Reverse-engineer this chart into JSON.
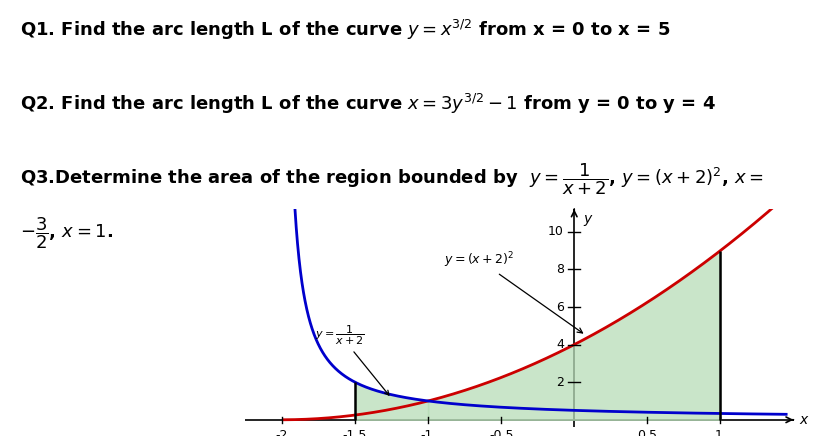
{
  "q1_text": "Q1. Find the arc length L of the curve $y = x^{3/2}$ from x = 0 to x = 5",
  "q2_text": "Q2. Find the arc length L of the curve $x = 3y^{3/2} - 1$ from y = 0 to y = 4",
  "q3_line1": "Q3.Determine the area of the region bounded by  $y = \\dfrac{1}{x+2}$, $y = (x+2)^2$, $x =$",
  "q3_line2": "$-\\dfrac{3}{2}$, $x = 1$.",
  "xlim": [
    -2.25,
    1.5
  ],
  "ylim": [
    -0.4,
    11.2
  ],
  "xtick_vals": [
    -2.0,
    -1.5,
    -1.0,
    -0.5,
    0.5,
    1.0
  ],
  "xtick_labels": [
    "-2",
    "-1.5",
    "-1.",
    "-0.5",
    "0.5",
    "1."
  ],
  "ytick_vals": [
    2,
    4,
    6,
    8,
    10
  ],
  "ytick_labels": [
    "2",
    "4",
    "6",
    "8",
    "10"
  ],
  "curve_red_color": "#cc0000",
  "curve_blue_color": "#0000cc",
  "fill_color": "#b8ddb8",
  "fill_alpha": 0.75,
  "vline_color": "#000000",
  "x_left_bound": -1.5,
  "x_right_bound": 1.0,
  "bg_color": "#ffffff",
  "text_color": "#000000",
  "label_fontsize": 11,
  "tick_fontsize": 9,
  "text_fontsize": 13
}
